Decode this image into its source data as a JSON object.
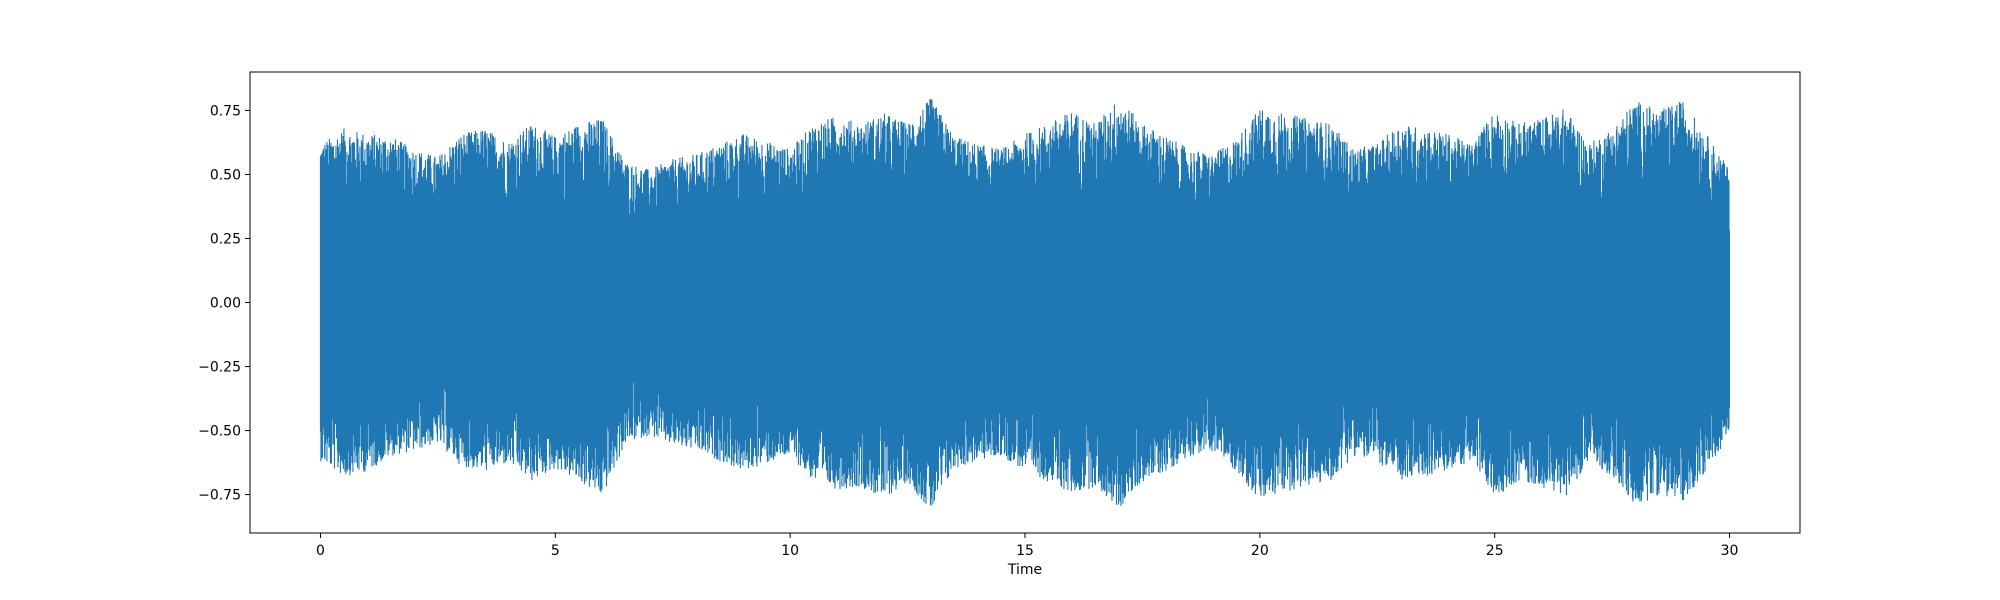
{
  "chart_data": {
    "type": "line",
    "title": "",
    "xlabel": "Time",
    "ylabel": "",
    "xlim": [
      -1.5,
      31.5
    ],
    "ylim": [
      -0.9,
      0.9
    ],
    "x_ticks": [
      0,
      5,
      10,
      15,
      20,
      25,
      30
    ],
    "x_tick_labels": [
      "0",
      "5",
      "10",
      "15",
      "20",
      "25",
      "30"
    ],
    "y_ticks": [
      -0.75,
      -0.5,
      -0.25,
      0.0,
      0.25,
      0.5,
      0.75
    ],
    "y_tick_labels": [
      "−0.75",
      "−0.50",
      "−0.25",
      "0.00",
      "0.25",
      "0.50",
      "0.75"
    ],
    "grid": false,
    "legend": "none",
    "color": "#1f77b4",
    "series": [
      {
        "x": [
          0,
          0.5,
          1,
          1.5,
          2,
          2.5,
          3,
          3.5,
          4,
          4.5,
          5,
          5.5,
          6,
          6.5,
          7,
          7.5,
          8,
          8.5,
          9,
          9.5,
          10,
          10.5,
          11,
          11.5,
          12,
          12.5,
          13,
          13.5,
          14,
          14.5,
          15,
          15.5,
          16,
          16.5,
          17,
          17.5,
          18,
          18.5,
          19,
          19.5,
          20,
          20.5,
          21,
          21.5,
          22,
          22.5,
          23,
          23.5,
          24,
          24.5,
          25,
          25.5,
          26,
          26.5,
          27,
          27.5,
          28,
          28.5,
          29,
          29.5,
          30
        ],
        "y_max": [
          0.62,
          0.68,
          0.66,
          0.65,
          0.6,
          0.57,
          0.66,
          0.68,
          0.63,
          0.7,
          0.65,
          0.7,
          0.72,
          0.55,
          0.52,
          0.56,
          0.58,
          0.62,
          0.66,
          0.63,
          0.6,
          0.7,
          0.73,
          0.7,
          0.74,
          0.7,
          0.8,
          0.65,
          0.62,
          0.6,
          0.66,
          0.7,
          0.75,
          0.7,
          0.8,
          0.7,
          0.65,
          0.6,
          0.58,
          0.64,
          0.76,
          0.74,
          0.72,
          0.7,
          0.6,
          0.62,
          0.7,
          0.68,
          0.66,
          0.62,
          0.75,
          0.7,
          0.72,
          0.76,
          0.62,
          0.68,
          0.79,
          0.75,
          0.79,
          0.66,
          0.52
        ],
        "y_min": [
          -0.62,
          -0.68,
          -0.66,
          -0.6,
          -0.58,
          -0.55,
          -0.64,
          -0.66,
          -0.63,
          -0.7,
          -0.65,
          -0.7,
          -0.76,
          -0.55,
          -0.52,
          -0.56,
          -0.58,
          -0.62,
          -0.66,
          -0.63,
          -0.6,
          -0.7,
          -0.73,
          -0.72,
          -0.77,
          -0.7,
          -0.82,
          -0.65,
          -0.62,
          -0.6,
          -0.66,
          -0.7,
          -0.75,
          -0.72,
          -0.81,
          -0.7,
          -0.66,
          -0.6,
          -0.58,
          -0.66,
          -0.78,
          -0.74,
          -0.72,
          -0.7,
          -0.6,
          -0.62,
          -0.7,
          -0.68,
          -0.66,
          -0.62,
          -0.76,
          -0.7,
          -0.72,
          -0.76,
          -0.62,
          -0.68,
          -0.8,
          -0.75,
          -0.78,
          -0.66,
          -0.52
        ]
      }
    ]
  }
}
